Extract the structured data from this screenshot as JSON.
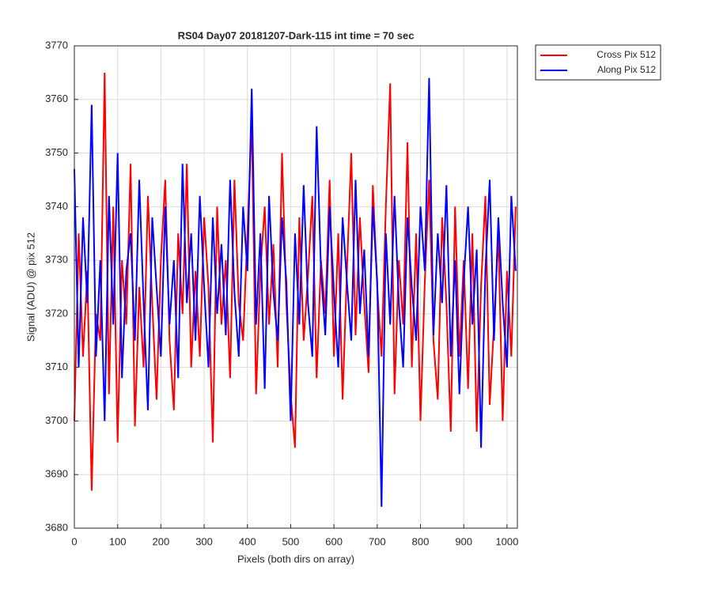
{
  "chart_data": {
    "type": "line",
    "title": "RS04 Day07 20181207-Dark-115 int time = 70 sec",
    "xlabel": "Pixels (both dirs on array)",
    "ylabel": "Signal (ADU) @ pix 512",
    "x": [
      0,
      10,
      20,
      30,
      40,
      50,
      60,
      70,
      80,
      90,
      100,
      110,
      120,
      130,
      140,
      150,
      160,
      170,
      180,
      190,
      200,
      210,
      220,
      230,
      240,
      250,
      260,
      270,
      280,
      290,
      300,
      310,
      320,
      330,
      340,
      350,
      360,
      370,
      380,
      390,
      400,
      410,
      420,
      430,
      440,
      450,
      460,
      470,
      480,
      490,
      500,
      510,
      520,
      530,
      540,
      550,
      560,
      570,
      580,
      590,
      600,
      610,
      620,
      630,
      640,
      650,
      660,
      670,
      680,
      690,
      700,
      710,
      720,
      730,
      740,
      750,
      760,
      770,
      780,
      790,
      800,
      810,
      820,
      830,
      840,
      850,
      860,
      870,
      880,
      890,
      900,
      910,
      920,
      930,
      940,
      950,
      960,
      970,
      980,
      990,
      1000,
      1010,
      1020
    ],
    "series": [
      {
        "name": "Cross Pix 512",
        "color": "#ff0000",
        "values": [
          3700,
          3735,
          3712,
          3728,
          3687,
          3720,
          3715,
          3765,
          3705,
          3740,
          3696,
          3730,
          3718,
          3748,
          3699,
          3725,
          3710,
          3742,
          3722,
          3704,
          3730,
          3745,
          3715,
          3702,
          3735,
          3720,
          3748,
          3710,
          3728,
          3712,
          3738,
          3725,
          3696,
          3740,
          3718,
          3730,
          3708,
          3745,
          3722,
          3715,
          3735,
          3756,
          3705,
          3728,
          3740,
          3718,
          3733,
          3710,
          3750,
          3722,
          3705,
          3695,
          3738,
          3715,
          3727,
          3742,
          3708,
          3730,
          3720,
          3745,
          3712,
          3735,
          3704,
          3728,
          3750,
          3716,
          3738,
          3722,
          3709,
          3744,
          3725,
          3712,
          3740,
          3763,
          3705,
          3730,
          3718,
          3752,
          3710,
          3735,
          3700,
          3726,
          3745,
          3715,
          3704,
          3738,
          3722,
          3698,
          3740,
          3712,
          3730,
          3706,
          3735,
          3698,
          3725,
          3742,
          3703,
          3718,
          3735,
          3700,
          3728,
          3712,
          3740
        ]
      },
      {
        "name": "Along Pix 512",
        "color": "#0000ff",
        "values": [
          3747,
          3710,
          3738,
          3722,
          3759,
          3712,
          3730,
          3700,
          3742,
          3718,
          3750,
          3708,
          3728,
          3735,
          3715,
          3745,
          3722,
          3702,
          3738,
          3725,
          3712,
          3740,
          3718,
          3730,
          3708,
          3748,
          3722,
          3735,
          3715,
          3742,
          3725,
          3710,
          3738,
          3720,
          3733,
          3716,
          3745,
          3724,
          3712,
          3740,
          3728,
          3762,
          3718,
          3735,
          3706,
          3742,
          3724,
          3715,
          3738,
          3726,
          3700,
          3735,
          3718,
          3744,
          3722,
          3712,
          3755,
          3728,
          3716,
          3740,
          3724,
          3710,
          3738,
          3726,
          3715,
          3745,
          3720,
          3732,
          3712,
          3740,
          3726,
          3684,
          3735,
          3718,
          3742,
          3722,
          3710,
          3738,
          3725,
          3715,
          3740,
          3728,
          3764,
          3716,
          3735,
          3722,
          3744,
          3712,
          3730,
          3705,
          3726,
          3740,
          3718,
          3732,
          3695,
          3728,
          3745,
          3715,
          3738,
          3722,
          3710,
          3742,
          3728
        ]
      }
    ],
    "xlim": [
      0,
      1024
    ],
    "ylim": [
      3680,
      3770
    ],
    "xticks": [
      0,
      100,
      200,
      300,
      400,
      500,
      600,
      700,
      800,
      900,
      1000
    ],
    "yticks": [
      3680,
      3690,
      3700,
      3710,
      3720,
      3730,
      3740,
      3750,
      3760,
      3770
    ],
    "grid": true,
    "legend": "northeastoutside"
  }
}
